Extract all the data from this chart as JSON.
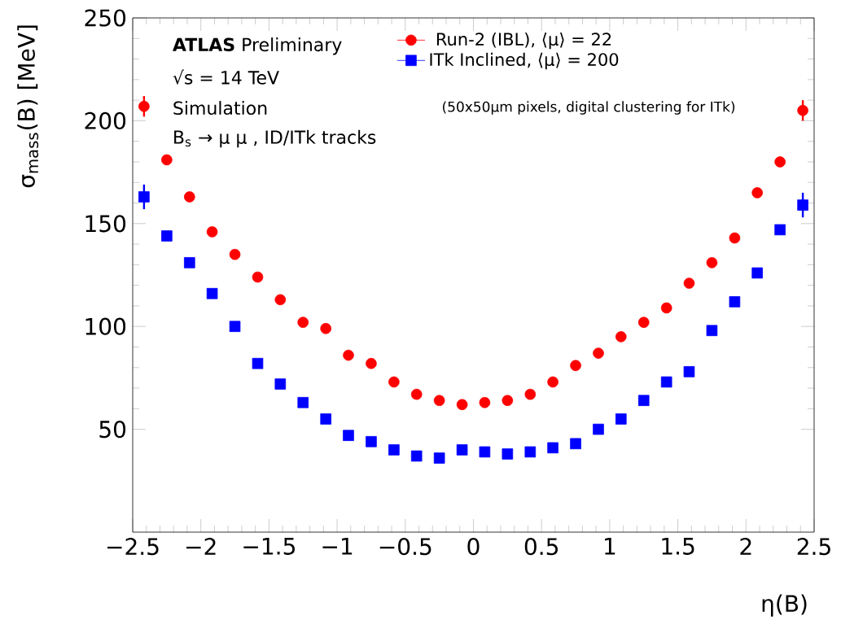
{
  "chart_data": {
    "type": "scatter",
    "xlabel": "η(B)",
    "ylabel": "σ$_{mass}$(B) [MeV]",
    "x": [
      -2.417,
      -2.25,
      -2.083,
      -1.917,
      -1.75,
      -1.583,
      -1.417,
      -1.25,
      -1.083,
      -0.917,
      -0.75,
      -0.583,
      -0.417,
      -0.25,
      -0.083,
      0.083,
      0.25,
      0.417,
      0.583,
      0.75,
      0.917,
      1.083,
      1.25,
      1.417,
      1.583,
      1.75,
      1.917,
      2.083,
      2.25,
      2.417
    ],
    "series": [
      {
        "name": "Run-2 (IBL), ⟨μ⟩ = 22",
        "color": "#ff0000",
        "marker": "circle",
        "values": [
          207,
          181,
          163,
          146,
          135,
          124,
          113,
          102,
          99,
          86,
          82,
          73,
          67,
          64,
          62,
          63,
          64,
          67,
          73,
          81,
          87,
          95,
          102,
          109,
          121,
          131,
          143,
          165,
          180,
          205
        ],
        "errors": [
          5,
          null,
          null,
          null,
          null,
          null,
          null,
          null,
          null,
          null,
          null,
          null,
          null,
          null,
          null,
          null,
          null,
          null,
          null,
          null,
          null,
          null,
          null,
          null,
          null,
          null,
          null,
          null,
          null,
          5
        ]
      },
      {
        "name": "ITk Inclined, ⟨μ⟩ = 200",
        "color": "#0000ff",
        "marker": "square",
        "values": [
          163,
          144,
          131,
          116,
          100,
          82,
          72,
          63,
          55,
          47,
          44,
          40,
          37,
          36,
          40,
          39,
          38,
          39,
          41,
          43,
          50,
          55,
          64,
          73,
          78,
          98,
          112,
          126,
          147,
          159
        ],
        "errors": [
          6,
          null,
          null,
          null,
          null,
          null,
          null,
          null,
          null,
          null,
          null,
          null,
          null,
          null,
          null,
          null,
          null,
          null,
          null,
          null,
          null,
          null,
          null,
          null,
          null,
          null,
          null,
          null,
          null,
          6
        ]
      }
    ],
    "xlim": [
      -2.5,
      2.5
    ],
    "xticks": [
      {
        "value": -2.5,
        "label": "−2.5"
      },
      {
        "value": -2,
        "label": "−2"
      },
      {
        "value": -1.5,
        "label": "−1.5"
      },
      {
        "value": -1,
        "label": "−1"
      },
      {
        "value": -0.5,
        "label": "−0.5"
      },
      0,
      0.5,
      1,
      1.5,
      2,
      2.5
    ],
    "ylim": [
      0,
      250
    ],
    "yticks": [
      {
        "value": 50,
        "label": "50"
      },
      100,
      150,
      200,
      250
    ],
    "legend": "top",
    "annotations": [
      {
        "text": "**ATLAS** Preliminary"
      },
      {
        "text": "√s = 14 TeV"
      },
      {
        "text": "Simulation"
      },
      {
        "text": "B$_{s}$ → μ μ , ID/ITk tracks"
      },
      {
        "text": "(50x50μm pixels, digital clustering for ITk)"
      }
    ]
  }
}
